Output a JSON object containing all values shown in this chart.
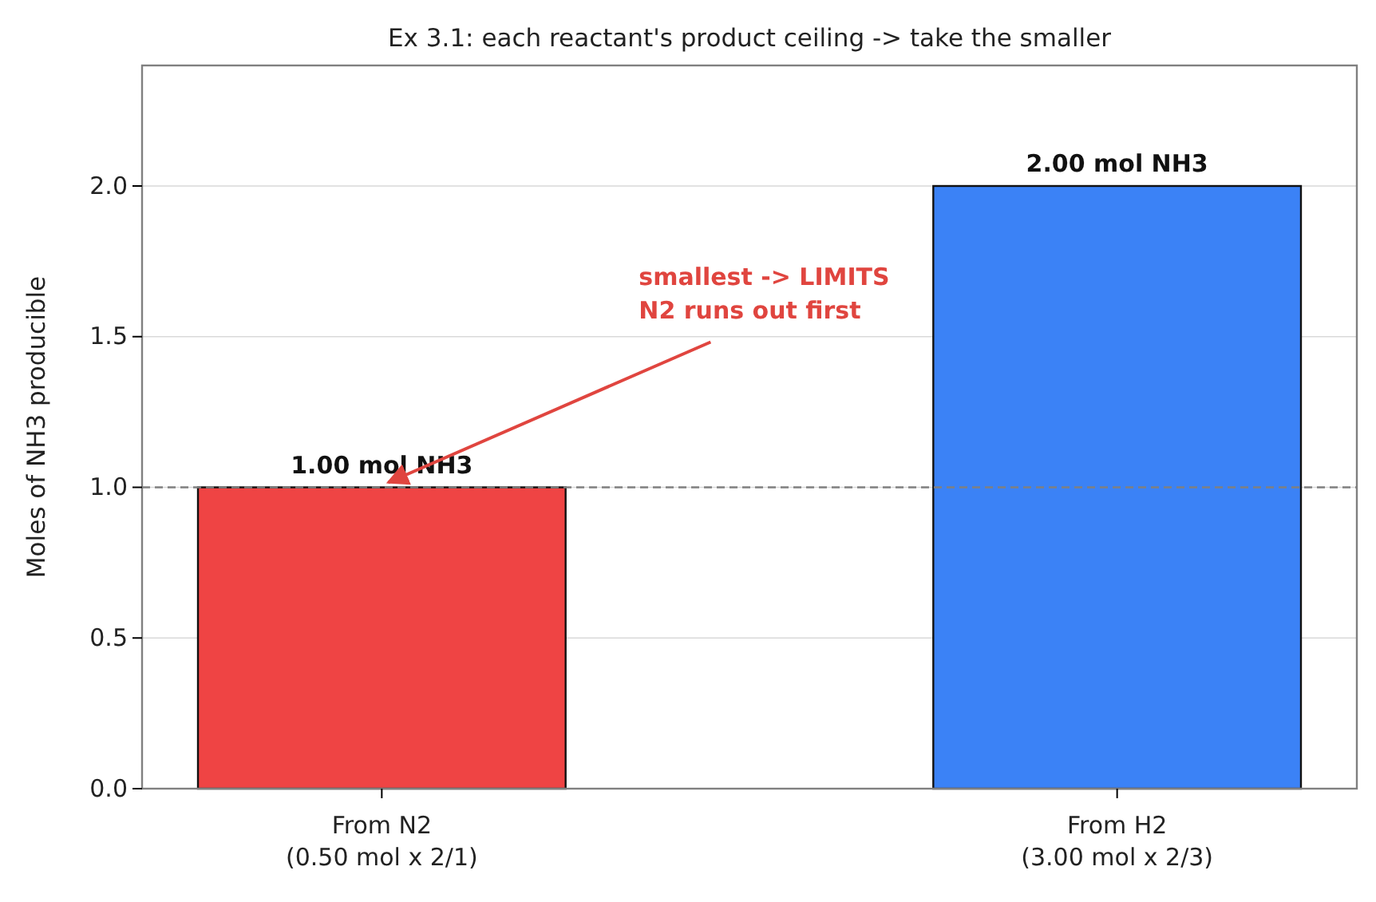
{
  "chart_data": {
    "type": "bar",
    "title": "Ex 3.1: each reactant's product ceiling -> take the smaller",
    "ylabel": "Moles of NH3 producible",
    "categories": [
      "From N2\n(0.50 mol x 2/1)",
      "From H2\n(3.00 mol x 2/3)"
    ],
    "values": [
      1.0,
      2.0
    ],
    "colors": [
      "#ef4444",
      "#3b82f6"
    ],
    "value_labels": [
      "1.00 mol NH3",
      "2.00 mol NH3"
    ],
    "ylim": [
      0,
      2.4
    ],
    "yticks": [
      {
        "value": 0,
        "label": "0.0"
      },
      {
        "value": 0.5,
        "label": "0.5"
      },
      {
        "value": 1,
        "label": "1.0"
      },
      {
        "value": 1.5,
        "label": "1.5"
      },
      {
        "value": 2,
        "label": "2.0"
      }
    ],
    "grid": "y",
    "ref_lines": [
      {
        "axis": "y",
        "value": 1.0,
        "color": "#808080",
        "line_style": "dashed"
      }
    ],
    "annotations": [
      {
        "text": "smallest -> LIMITS\nN2 runs out first",
        "x": "From N2\n(0.50 mol x 2/1)",
        "y": 1.0
      }
    ]
  }
}
